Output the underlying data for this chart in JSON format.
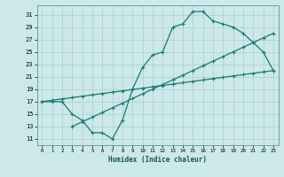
{
  "title": "",
  "xlabel": "Humidex (Indice chaleur)",
  "bg_color": "#cce8ea",
  "grid_color": "#aacdd0",
  "line_color": "#1a7a6e",
  "xlim": [
    -0.5,
    23.5
  ],
  "ylim": [
    10.0,
    32.5
  ],
  "yticks": [
    11,
    13,
    15,
    17,
    19,
    21,
    23,
    25,
    27,
    29,
    31
  ],
  "xticks": [
    0,
    1,
    2,
    3,
    4,
    5,
    6,
    7,
    8,
    9,
    10,
    11,
    12,
    13,
    14,
    15,
    16,
    17,
    18,
    19,
    20,
    21,
    22,
    23
  ],
  "line1_x": [
    0,
    1,
    2,
    3,
    4,
    5,
    6,
    7,
    8,
    9,
    10,
    11,
    12,
    13,
    14,
    15,
    16,
    17,
    18,
    19,
    20,
    21,
    22,
    23
  ],
  "line1_y": [
    17,
    17,
    17,
    15,
    14,
    12,
    12,
    11,
    14,
    19,
    22.5,
    24.5,
    25,
    29,
    29.5,
    31.5,
    31.5,
    30,
    29.5,
    29,
    28,
    26.5,
    25,
    22
  ],
  "line2_x": [
    0,
    1,
    2,
    3,
    4,
    5,
    6,
    7,
    8,
    9,
    10,
    11,
    12,
    13,
    14,
    15,
    16,
    17,
    18,
    19,
    20,
    21,
    22,
    23
  ],
  "line2_y": [
    17,
    17.217,
    17.435,
    17.652,
    17.87,
    18.087,
    18.304,
    18.522,
    18.739,
    18.957,
    19.174,
    19.391,
    19.609,
    19.826,
    20.043,
    20.261,
    20.478,
    20.696,
    20.913,
    21.13,
    21.348,
    21.565,
    21.783,
    22.0
  ],
  "line3_x": [
    3,
    4,
    5,
    6,
    7,
    8,
    9,
    10,
    11,
    12,
    13,
    14,
    15,
    16,
    17,
    18,
    19,
    20,
    21,
    22,
    23
  ],
  "line3_y": [
    13,
    13.75,
    14.5,
    15.25,
    16.0,
    16.75,
    17.5,
    18.25,
    19.0,
    19.75,
    20.5,
    21.25,
    22.0,
    22.75,
    23.5,
    24.25,
    25.0,
    25.75,
    26.5,
    27.25,
    28.0
  ]
}
